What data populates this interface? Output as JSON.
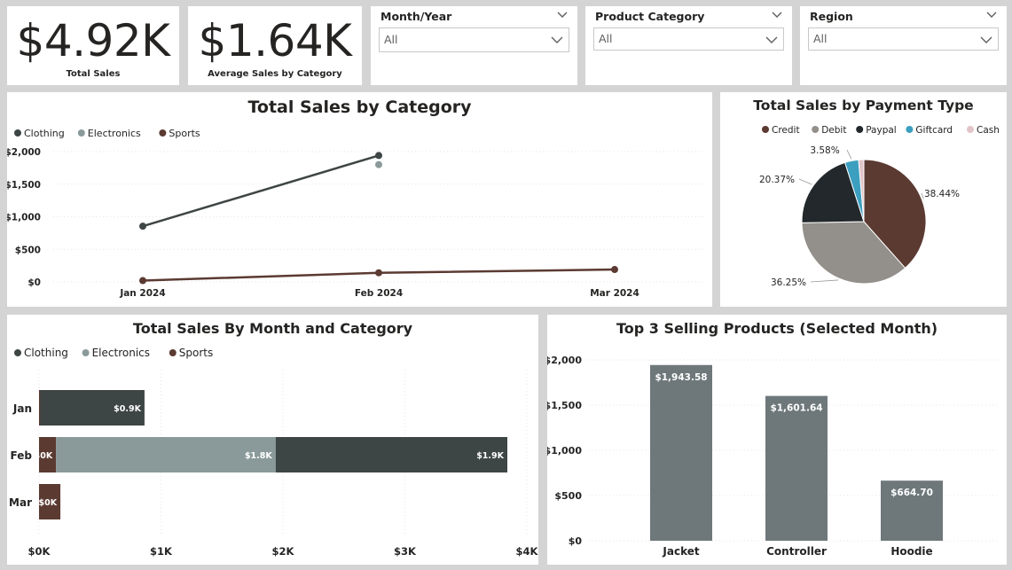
{
  "kpis": {
    "total_sales": {
      "value": "$4.92K",
      "label": "Total Sales"
    },
    "avg_sales": {
      "value": "$1.64K",
      "label": "Average Sales by Category"
    }
  },
  "slicers": {
    "month_year": {
      "title": "Month/Year",
      "value": "All"
    },
    "product_category": {
      "title": "Product Category",
      "value": "All"
    },
    "region": {
      "title": "Region",
      "value": "All"
    }
  },
  "colors": {
    "clothing": "#3e4545",
    "electronics": "#8a9a9a",
    "sports": "#5b3a32",
    "credit": "#5b3a32",
    "debit": "#938f8a",
    "paypal": "#22282b",
    "giftcard": "#3d9fc0",
    "cash": "#e3c4c8",
    "bar": "#6e787b"
  },
  "chart_data": [
    {
      "type": "line",
      "title": "Total Sales by Category",
      "categories": [
        "Jan 2024",
        "Feb 2024",
        "Mar 2024"
      ],
      "series": [
        {
          "name": "Clothing",
          "values": [
            855,
            1940,
            null
          ]
        },
        {
          "name": "Electronics",
          "values": [
            null,
            1800,
            null
          ]
        },
        {
          "name": "Sports",
          "values": [
            20,
            140,
            190
          ]
        }
      ],
      "yticks": [
        "$0",
        "$500",
        "$1,000",
        "$1,500",
        "$2,000"
      ],
      "ylim": [
        0,
        2000
      ],
      "legend": "top-left"
    },
    {
      "type": "pie",
      "title": "Total Sales by Payment Type",
      "labels": [
        "Credit",
        "Debit",
        "Paypal",
        "Giftcard",
        "Cash"
      ],
      "values": [
        38.44,
        36.25,
        20.37,
        3.58,
        1.36
      ],
      "data_labels": [
        "38.44%",
        "36.25%",
        "20.37%",
        "3.58%",
        ""
      ],
      "legend": "top"
    },
    {
      "type": "bar",
      "orientation": "horizontal",
      "stacked": true,
      "title": "Total Sales By Month and Category",
      "categories": [
        "Jan",
        "Feb",
        "Mar"
      ],
      "series": [
        {
          "name": "Sports",
          "values": [
            10,
            140,
            175
          ],
          "labels": [
            "",
            "$0K",
            "$0K"
          ]
        },
        {
          "name": "Electronics",
          "values": [
            0,
            1800,
            0
          ],
          "labels": [
            "",
            "$1.8K",
            ""
          ]
        },
        {
          "name": "Clothing",
          "values": [
            855,
            1900,
            0
          ],
          "labels": [
            "$0.9K",
            "$1.9K",
            ""
          ]
        }
      ],
      "legend_order": [
        "Clothing",
        "Electronics",
        "Sports"
      ],
      "xticks": [
        "$0K",
        "$1K",
        "$2K",
        "$3K",
        "$4K"
      ],
      "xlim": [
        0,
        4000
      ],
      "legend": "top-left"
    },
    {
      "type": "bar",
      "title": "Top 3 Selling Products (Selected Month)",
      "categories": [
        "Jacket",
        "Controller",
        "Hoodie"
      ],
      "values": [
        1943.58,
        1601.64,
        664.7
      ],
      "data_labels": [
        "$1,943.58",
        "$1,601.64",
        "$664.70"
      ],
      "yticks": [
        "$0",
        "$500",
        "$1,000",
        "$1,500",
        "$2,000"
      ],
      "ylim": [
        0,
        2000
      ]
    }
  ]
}
